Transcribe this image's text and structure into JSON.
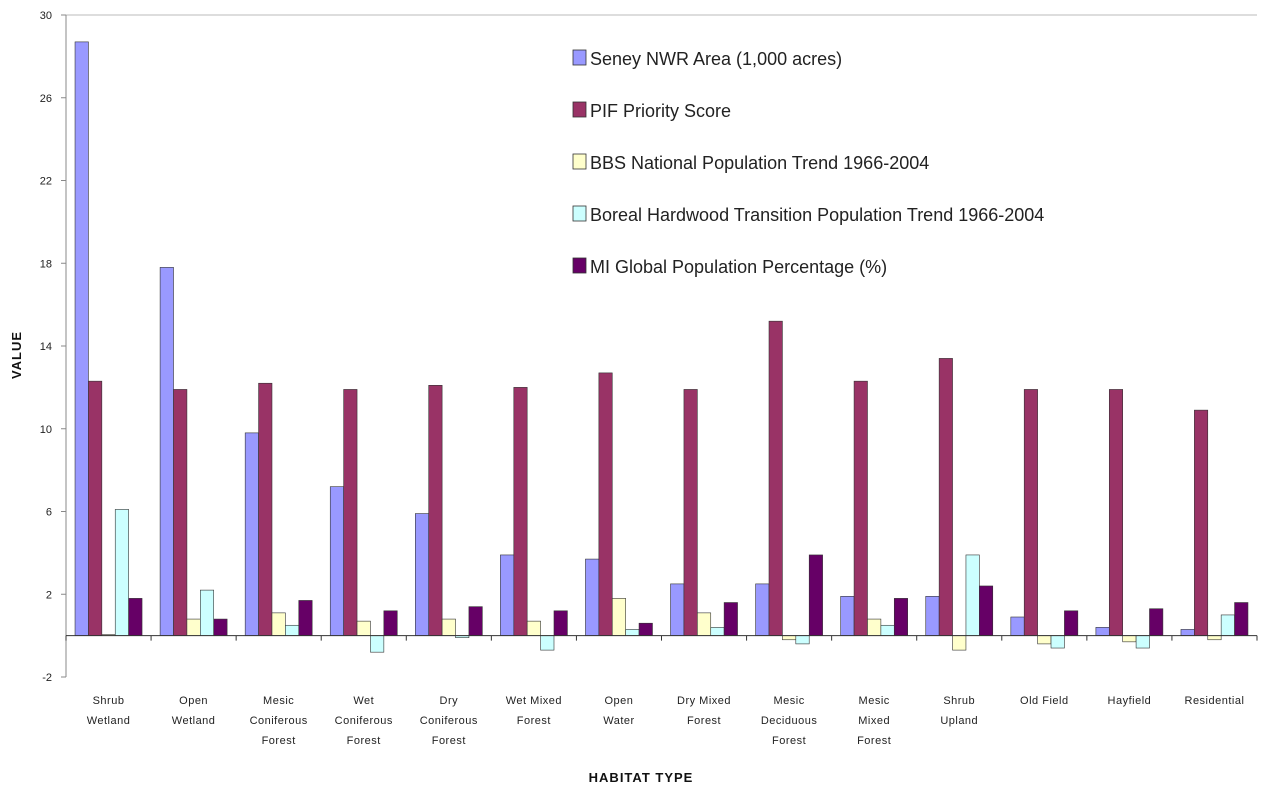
{
  "chart_data": {
    "type": "bar",
    "xlabel": "HABITAT TYPE",
    "ylabel": "VALUE",
    "ylim": [
      -2,
      30
    ],
    "yticks": [
      -2,
      2,
      6,
      10,
      14,
      18,
      22,
      26,
      30
    ],
    "grid": false,
    "legend_position": "top-right",
    "categories": [
      [
        "Shrub",
        "Wetland"
      ],
      [
        "Open",
        "Wetland"
      ],
      [
        "Mesic",
        "Coniferous",
        "Forest"
      ],
      [
        "Wet",
        "Coniferous",
        "Forest"
      ],
      [
        "Dry",
        "Coniferous",
        "Forest"
      ],
      [
        "Wet Mixed",
        "Forest"
      ],
      [
        "Open",
        "Water"
      ],
      [
        "Dry Mixed",
        "Forest"
      ],
      [
        "Mesic",
        "Deciduous",
        "Forest"
      ],
      [
        "Mesic",
        "Mixed",
        "Forest"
      ],
      [
        "Shrub",
        "Upland"
      ],
      [
        "Old Field"
      ],
      [
        "Hayfield"
      ],
      [
        "Residential"
      ]
    ],
    "series": [
      {
        "name": "Seney NWR Area (1,000 acres)",
        "color": "#9999FF",
        "values": [
          28.7,
          17.8,
          9.8,
          7.2,
          5.9,
          3.9,
          3.7,
          2.5,
          2.5,
          1.9,
          1.9,
          0.9,
          0.4,
          0.3
        ]
      },
      {
        "name": "PIF Priority Score",
        "color": "#993366",
        "values": [
          12.3,
          11.9,
          12.2,
          11.9,
          12.1,
          12.0,
          12.7,
          11.9,
          15.2,
          12.3,
          13.4,
          11.9,
          11.9,
          10.9
        ]
      },
      {
        "name": "BBS National Population Trend 1966-2004",
        "color": "#FFFFCC",
        "values": [
          0.05,
          0.8,
          1.1,
          0.7,
          0.8,
          0.7,
          1.8,
          1.1,
          -0.2,
          0.8,
          -0.7,
          -0.4,
          -0.3,
          -0.2
        ]
      },
      {
        "name": "Boreal Hardwood Transition Population Trend 1966-2004",
        "color": "#CCFFFF",
        "values": [
          6.1,
          2.2,
          0.5,
          -0.8,
          -0.1,
          -0.7,
          0.3,
          0.4,
          -0.4,
          0.5,
          3.9,
          -0.6,
          -0.6,
          1.0
        ]
      },
      {
        "name": "MI Global Population Percentage (%)",
        "color": "#660066",
        "values": [
          1.8,
          0.8,
          1.7,
          1.2,
          1.4,
          1.2,
          0.6,
          1.6,
          3.9,
          1.8,
          2.4,
          1.2,
          1.3,
          1.6
        ]
      }
    ]
  }
}
